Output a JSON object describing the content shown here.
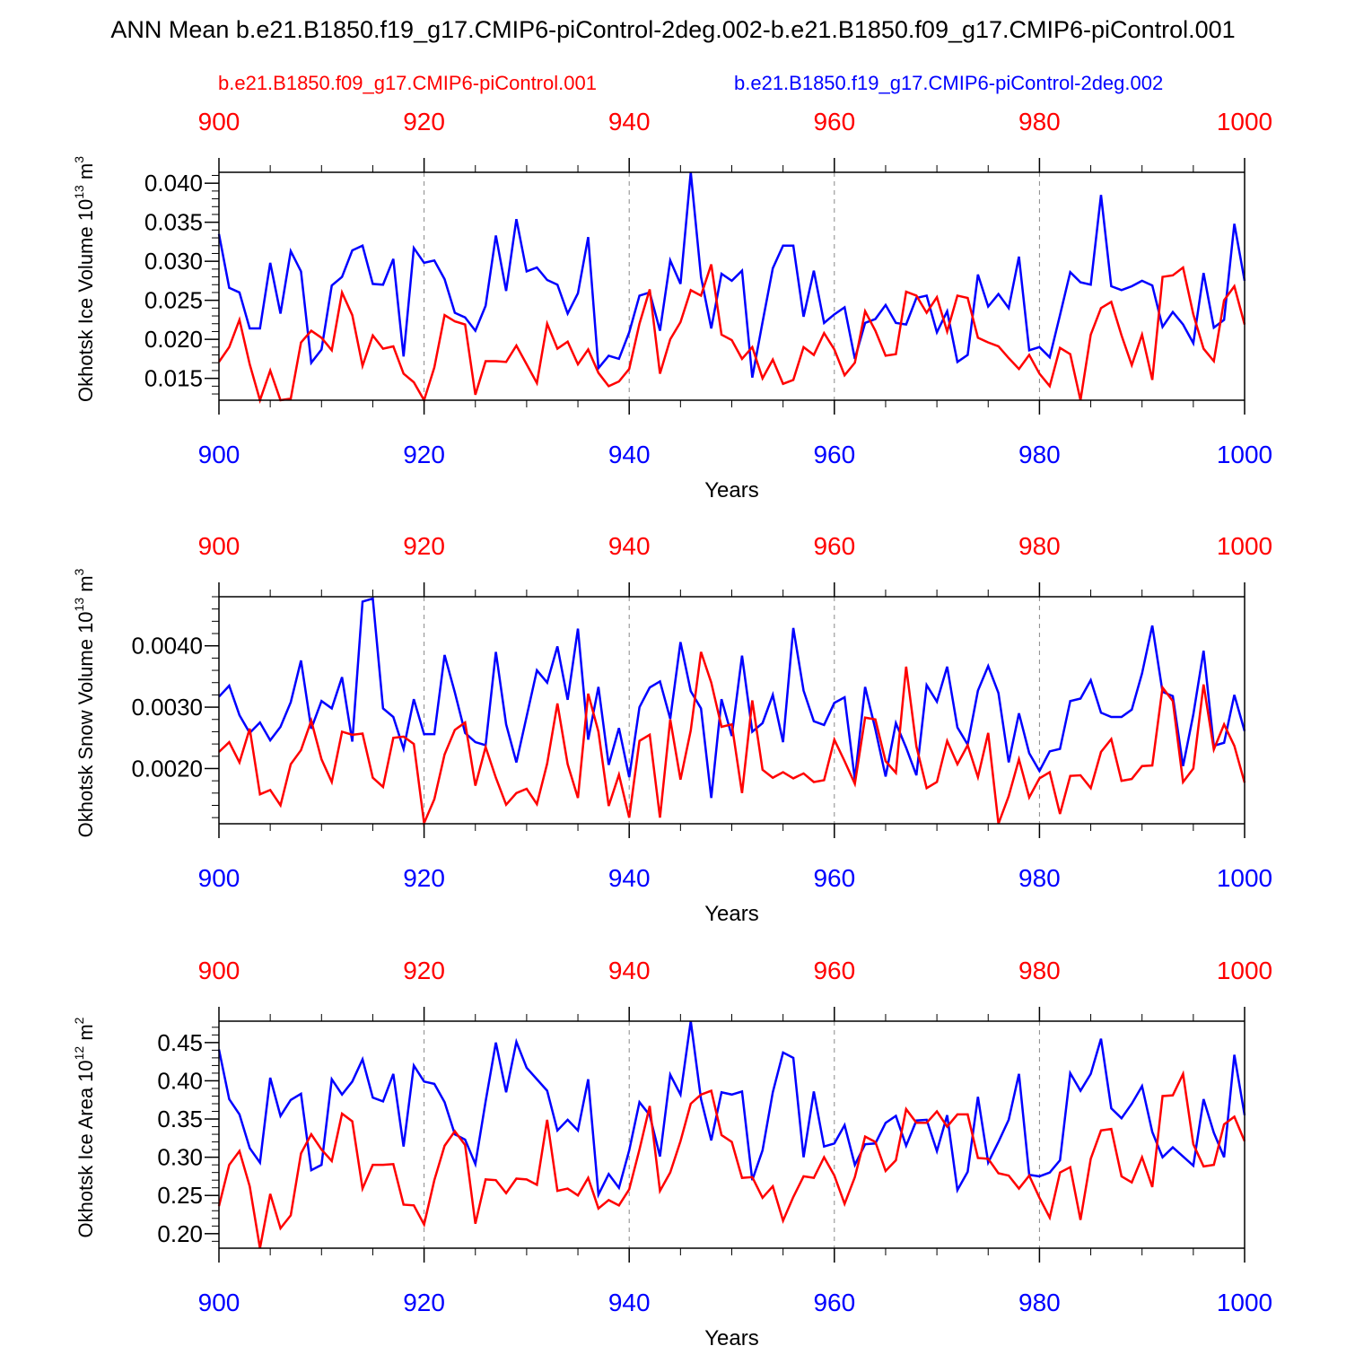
{
  "figure": {
    "title": "ANN Mean b.e21.B1850.f19_g17.CMIP6-piControl-2deg.002-b.e21.B1850.f09_g17.CMIP6-piControl.001",
    "legend": [
      {
        "name": "b.e21.B1850.f09_g17.CMIP6-piControl.001",
        "color": "#ff0000"
      },
      {
        "name": "b.e21.B1850.f19_g17.CMIP6-piControl-2deg.002",
        "color": "#0000ff"
      }
    ]
  },
  "chart_data": [
    {
      "type": "line",
      "title": "",
      "xlabel": "Years",
      "ylabel": "Okhotsk Ice Volume 10^13 m^3",
      "ylabel_parts": {
        "prefix": "Okhotsk Ice Volume 10",
        "exp": "13",
        "mid": " m",
        "exp2": "3"
      },
      "xlim": [
        900,
        1000
      ],
      "ylim": [
        0.0122,
        0.0414
      ],
      "xticks": [
        900,
        920,
        940,
        960,
        980,
        1000
      ],
      "xtick_labels": [
        "900",
        "920",
        "940",
        "960",
        "980",
        "1000"
      ],
      "yticks": [
        0.015,
        0.02,
        0.025,
        0.03,
        0.035,
        0.04
      ],
      "ytick_labels": [
        "0.015",
        "0.020",
        "0.025",
        "0.030",
        "0.035",
        "0.040"
      ],
      "yminor_step": 0.001,
      "grid": "vertical dashed at major x ticks",
      "series": [
        {
          "name": "b.e21.B1850.f09_g17.CMIP6-piControl.001",
          "color": "#ff0000",
          "x_start": 900,
          "x_step": 1,
          "values": [
            0.0171,
            0.019,
            0.0225,
            0.0168,
            0.0122,
            0.016,
            0.0122,
            0.0124,
            0.0196,
            0.0211,
            0.0202,
            0.0186,
            0.026,
            0.0231,
            0.0166,
            0.0205,
            0.0188,
            0.0191,
            0.0156,
            0.0145,
            0.0122,
            0.0164,
            0.0231,
            0.0223,
            0.0219,
            0.0129,
            0.0172,
            0.0172,
            0.0171,
            0.0192,
            0.0168,
            0.0144,
            0.022,
            0.0188,
            0.0197,
            0.0168,
            0.0187,
            0.0157,
            0.014,
            0.0146,
            0.0162,
            0.022,
            0.0264,
            0.0156,
            0.02,
            0.0222,
            0.0263,
            0.0256,
            0.0296,
            0.0206,
            0.0199,
            0.0175,
            0.019,
            0.015,
            0.0174,
            0.0143,
            0.0148,
            0.019,
            0.018,
            0.0208,
            0.0187,
            0.0154,
            0.017,
            0.0236,
            0.0211,
            0.0179,
            0.0181,
            0.0261,
            0.0256,
            0.0234,
            0.0254,
            0.021,
            0.0256,
            0.0253,
            0.0202,
            0.0196,
            0.0191,
            0.0176,
            0.0162,
            0.018,
            0.0156,
            0.014,
            0.0189,
            0.0181,
            0.0122,
            0.0206,
            0.024,
            0.0248,
            0.0205,
            0.0167,
            0.0206,
            0.0148,
            0.028,
            0.0282,
            0.0292,
            0.0232,
            0.0188,
            0.0172,
            0.025,
            0.0268,
            0.0219
          ]
        },
        {
          "name": "b.e21.B1850.f19_g17.CMIP6-piControl-2deg.002",
          "color": "#0000ff",
          "x_start": 900,
          "x_step": 1,
          "values": [
            0.0335,
            0.0266,
            0.026,
            0.0214,
            0.0214,
            0.0298,
            0.0233,
            0.0313,
            0.0287,
            0.017,
            0.0187,
            0.0269,
            0.028,
            0.0314,
            0.032,
            0.0271,
            0.027,
            0.0303,
            0.0178,
            0.0317,
            0.0298,
            0.0301,
            0.0277,
            0.0234,
            0.0228,
            0.0211,
            0.0243,
            0.0333,
            0.0262,
            0.0354,
            0.0287,
            0.0292,
            0.0276,
            0.027,
            0.0233,
            0.0259,
            0.0331,
            0.0163,
            0.0179,
            0.0175,
            0.0209,
            0.0256,
            0.026,
            0.0211,
            0.0301,
            0.0271,
            0.0414,
            0.028,
            0.0214,
            0.0284,
            0.0275,
            0.0288,
            0.0151,
            0.0222,
            0.0291,
            0.032,
            0.032,
            0.0229,
            0.0288,
            0.0221,
            0.0232,
            0.0241,
            0.0175,
            0.0221,
            0.0226,
            0.0244,
            0.0221,
            0.0219,
            0.0253,
            0.0256,
            0.0209,
            0.0236,
            0.0171,
            0.018,
            0.0283,
            0.0242,
            0.0258,
            0.024,
            0.0306,
            0.0186,
            0.019,
            0.0177,
            0.0231,
            0.0286,
            0.0273,
            0.027,
            0.0385,
            0.0268,
            0.0263,
            0.0268,
            0.0275,
            0.0269,
            0.0216,
            0.0235,
            0.0219,
            0.0195,
            0.0285,
            0.0215,
            0.0225,
            0.0348,
            0.0275
          ]
        }
      ]
    },
    {
      "type": "line",
      "title": "",
      "xlabel": "Years",
      "ylabel": "Okhotsk Snow Volume 10^13 m^3",
      "ylabel_parts": {
        "prefix": "Okhotsk Snow Volume 10",
        "exp": "13",
        "mid": " m",
        "exp2": "3"
      },
      "xlim": [
        900,
        1000
      ],
      "ylim": [
        0.0011,
        0.0048
      ],
      "xticks": [
        900,
        920,
        940,
        960,
        980,
        1000
      ],
      "xtick_labels": [
        "900",
        "920",
        "940",
        "960",
        "980",
        "1000"
      ],
      "yticks": [
        0.002,
        0.003,
        0.004
      ],
      "ytick_labels": [
        "0.0020",
        "0.0030",
        "0.0040"
      ],
      "yminor_step": 0.0002,
      "grid": "vertical dashed at major x ticks",
      "series": [
        {
          "name": "b.e21.B1850.f09_g17.CMIP6-piControl.001",
          "color": "#ff0000",
          "x_start": 900,
          "x_step": 1,
          "values": [
            0.00227,
            0.00243,
            0.0021,
            0.00265,
            0.00158,
            0.00165,
            0.0014,
            0.00207,
            0.0023,
            0.00278,
            0.00215,
            0.00178,
            0.0026,
            0.00255,
            0.00257,
            0.00185,
            0.0017,
            0.0025,
            0.00252,
            0.0024,
            0.00111,
            0.0015,
            0.00223,
            0.00263,
            0.00275,
            0.00172,
            0.00235,
            0.00185,
            0.00141,
            0.0016,
            0.00167,
            0.00142,
            0.00208,
            0.00306,
            0.00207,
            0.00152,
            0.00322,
            0.0026,
            0.00139,
            0.0019,
            0.0012,
            0.00245,
            0.00255,
            0.0012,
            0.0028,
            0.00182,
            0.00262,
            0.0039,
            0.0034,
            0.00268,
            0.00272,
            0.0016,
            0.00311,
            0.00198,
            0.00185,
            0.00194,
            0.00184,
            0.00192,
            0.00178,
            0.00181,
            0.00247,
            0.00212,
            0.00175,
            0.00283,
            0.0028,
            0.00212,
            0.00193,
            0.00366,
            0.00236,
            0.00168,
            0.00178,
            0.00245,
            0.00207,
            0.00238,
            0.00186,
            0.00258,
            0.0011,
            0.00155,
            0.00215,
            0.00153,
            0.00184,
            0.00194,
            0.00126,
            0.00188,
            0.00189,
            0.00168,
            0.00227,
            0.00248,
            0.0018,
            0.00183,
            0.00204,
            0.00205,
            0.00332,
            0.0031,
            0.00178,
            0.002,
            0.00337,
            0.00231,
            0.00272,
            0.00237,
            0.00177
          ]
        },
        {
          "name": "b.e21.B1850.f19_g17.CMIP6-piControl-2deg.002",
          "color": "#0000ff",
          "x_start": 900,
          "x_step": 1,
          "values": [
            0.00317,
            0.00335,
            0.00287,
            0.00258,
            0.00275,
            0.00246,
            0.00268,
            0.00308,
            0.00376,
            0.00265,
            0.0031,
            0.00298,
            0.00349,
            0.00244,
            0.00472,
            0.00477,
            0.00298,
            0.00284,
            0.00232,
            0.00313,
            0.00256,
            0.00256,
            0.00385,
            0.00324,
            0.00258,
            0.00243,
            0.00238,
            0.0039,
            0.00272,
            0.0021,
            0.00285,
            0.0036,
            0.0034,
            0.00399,
            0.00312,
            0.00428,
            0.00247,
            0.00333,
            0.00206,
            0.00266,
            0.00186,
            0.003,
            0.00332,
            0.00342,
            0.00281,
            0.00406,
            0.00326,
            0.00298,
            0.00152,
            0.00313,
            0.00253,
            0.00384,
            0.0026,
            0.00274,
            0.0032,
            0.00243,
            0.00429,
            0.00327,
            0.00277,
            0.00271,
            0.00307,
            0.00316,
            0.00182,
            0.00333,
            0.00264,
            0.00187,
            0.00274,
            0.00234,
            0.00189,
            0.00336,
            0.00309,
            0.00366,
            0.00267,
            0.00239,
            0.00327,
            0.00367,
            0.00323,
            0.0021,
            0.0029,
            0.00225,
            0.00196,
            0.00228,
            0.00232,
            0.0031,
            0.00314,
            0.00344,
            0.00291,
            0.00284,
            0.00284,
            0.00296,
            0.00355,
            0.00433,
            0.00325,
            0.00318,
            0.00204,
            0.00288,
            0.00392,
            0.00237,
            0.00242,
            0.0032,
            0.00261
          ]
        }
      ]
    },
    {
      "type": "line",
      "title": "",
      "xlabel": "Years",
      "ylabel": "Okhotsk Ice Area 10^12 m^2",
      "ylabel_parts": {
        "prefix": "Okhotsk Ice Area 10",
        "exp": "12",
        "mid": " m",
        "exp2": "2"
      },
      "xlim": [
        900,
        1000
      ],
      "ylim": [
        0.181,
        0.478
      ],
      "xticks": [
        900,
        920,
        940,
        960,
        980,
        1000
      ],
      "xtick_labels": [
        "900",
        "920",
        "940",
        "960",
        "980",
        "1000"
      ],
      "yticks": [
        0.2,
        0.25,
        0.3,
        0.35,
        0.4,
        0.45
      ],
      "ytick_labels": [
        "0.20",
        "0.25",
        "0.30",
        "0.35",
        "0.40",
        "0.45"
      ],
      "yminor_step": 0.01,
      "grid": "vertical dashed at major x ticks",
      "series": [
        {
          "name": "b.e21.B1850.f09_g17.CMIP6-piControl.001",
          "color": "#ff0000",
          "x_start": 900,
          "x_step": 1,
          "values": [
            0.236,
            0.29,
            0.308,
            0.262,
            0.181,
            0.252,
            0.207,
            0.224,
            0.305,
            0.33,
            0.31,
            0.295,
            0.357,
            0.347,
            0.259,
            0.29,
            0.29,
            0.291,
            0.238,
            0.237,
            0.212,
            0.27,
            0.315,
            0.334,
            0.316,
            0.213,
            0.271,
            0.27,
            0.253,
            0.272,
            0.271,
            0.264,
            0.349,
            0.256,
            0.259,
            0.25,
            0.273,
            0.233,
            0.244,
            0.237,
            0.258,
            0.31,
            0.367,
            0.256,
            0.28,
            0.321,
            0.37,
            0.382,
            0.387,
            0.329,
            0.32,
            0.273,
            0.274,
            0.247,
            0.262,
            0.217,
            0.248,
            0.275,
            0.273,
            0.3,
            0.276,
            0.239,
            0.274,
            0.327,
            0.32,
            0.282,
            0.296,
            0.363,
            0.345,
            0.345,
            0.36,
            0.34,
            0.356,
            0.356,
            0.299,
            0.298,
            0.279,
            0.276,
            0.259,
            0.276,
            0.247,
            0.221,
            0.28,
            0.287,
            0.218,
            0.298,
            0.335,
            0.337,
            0.275,
            0.267,
            0.3,
            0.261,
            0.38,
            0.381,
            0.409,
            0.317,
            0.288,
            0.29,
            0.343,
            0.353,
            0.321
          ]
        },
        {
          "name": "b.e21.B1850.f19_g17.CMIP6-piControl-2deg.002",
          "color": "#0000ff",
          "x_start": 900,
          "x_step": 1,
          "values": [
            0.441,
            0.376,
            0.356,
            0.312,
            0.293,
            0.404,
            0.354,
            0.375,
            0.383,
            0.283,
            0.29,
            0.402,
            0.382,
            0.399,
            0.428,
            0.378,
            0.373,
            0.409,
            0.314,
            0.42,
            0.399,
            0.396,
            0.372,
            0.33,
            0.323,
            0.291,
            0.373,
            0.45,
            0.385,
            0.451,
            0.417,
            0.402,
            0.387,
            0.335,
            0.349,
            0.335,
            0.402,
            0.251,
            0.278,
            0.26,
            0.309,
            0.372,
            0.355,
            0.301,
            0.408,
            0.382,
            0.478,
            0.376,
            0.322,
            0.385,
            0.382,
            0.386,
            0.27,
            0.309,
            0.385,
            0.437,
            0.43,
            0.3,
            0.386,
            0.314,
            0.318,
            0.342,
            0.29,
            0.317,
            0.318,
            0.345,
            0.354,
            0.315,
            0.348,
            0.349,
            0.308,
            0.355,
            0.257,
            0.281,
            0.379,
            0.293,
            0.32,
            0.349,
            0.409,
            0.277,
            0.275,
            0.28,
            0.296,
            0.41,
            0.387,
            0.409,
            0.455,
            0.364,
            0.351,
            0.37,
            0.393,
            0.333,
            0.3,
            0.313,
            0.301,
            0.289,
            0.376,
            0.332,
            0.3,
            0.434,
            0.355
          ]
        }
      ]
    }
  ]
}
